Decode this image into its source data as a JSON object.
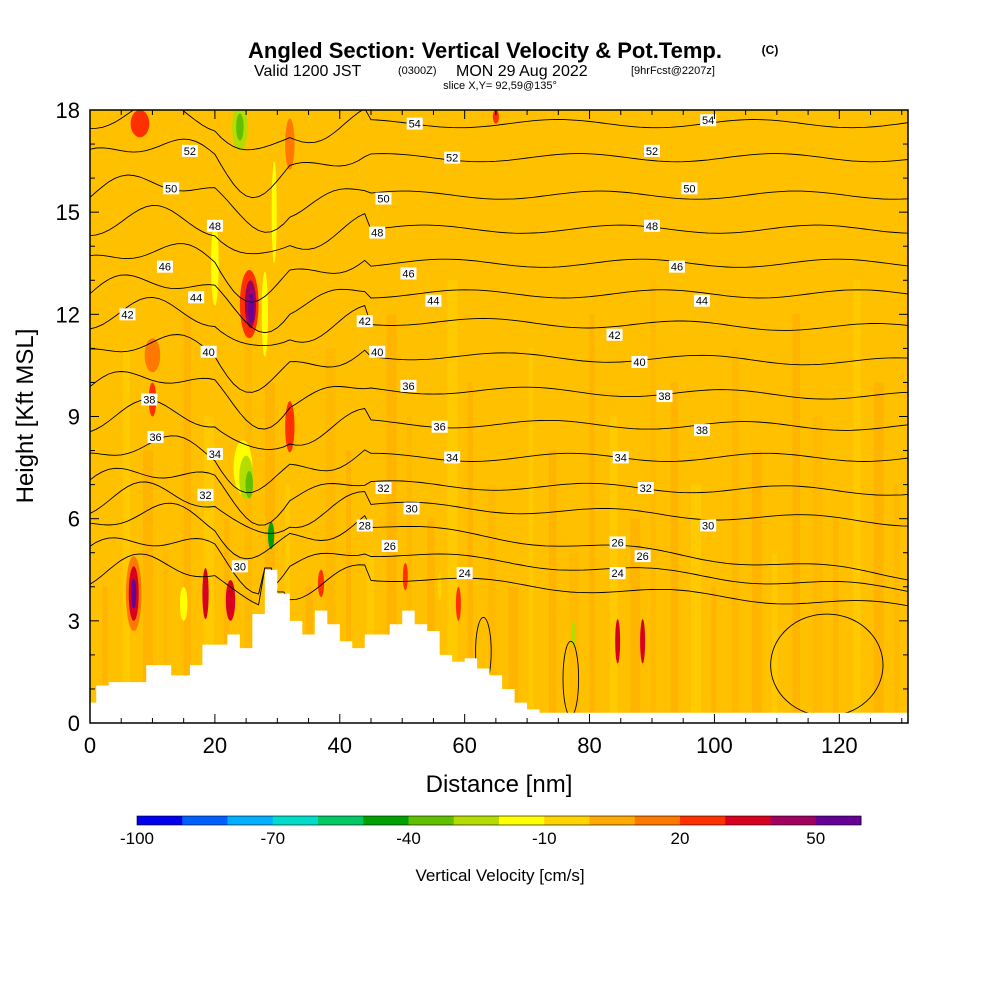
{
  "chart_data": {
    "type": "heatmap",
    "title": "Angled Section: Vertical Velocity & Pot.Temp.",
    "title_mark": "(C)",
    "subtitle_parts": [
      "Valid 1200 JST",
      "(0300Z)",
      "MON 29 Aug 2022",
      "[9hrFcst@2207z]"
    ],
    "subtitle2": "slice X,Y= 92,59@135°",
    "xlabel": "Distance [nm]",
    "ylabel": "Height [Kft MSL]",
    "xlim": [
      0,
      131
    ],
    "ylim": [
      0,
      18
    ],
    "xticks": [
      0,
      20,
      40,
      60,
      80,
      100,
      120
    ],
    "yticks": [
      0,
      3,
      6,
      9,
      12,
      15,
      18
    ],
    "background_color": "#ffc000",
    "colorbar": {
      "label": "Vertical Velocity [cm/s]",
      "tick_labels": [
        "-100",
        "-70",
        "-40",
        "-10",
        "20",
        "50"
      ],
      "colors": [
        "#0000ee",
        "#0060ff",
        "#00b0ff",
        "#00dcc8",
        "#00c864",
        "#00a000",
        "#60c000",
        "#b4dc00",
        "#ffff00",
        "#ffd200",
        "#ffaa00",
        "#ff7800",
        "#ff3000",
        "#d80020",
        "#a00060",
        "#640096"
      ]
    },
    "streaks": [
      {
        "x": 7,
        "y": 3.8,
        "w": 2.5,
        "h": 2.2,
        "color": "#ff7800"
      },
      {
        "x": 7,
        "y": 3.8,
        "w": 1.6,
        "h": 1.6,
        "color": "#d80020"
      },
      {
        "x": 7,
        "y": 3.8,
        "w": 0.8,
        "h": 0.9,
        "color": "#640096"
      },
      {
        "x": 10,
        "y": 9.5,
        "w": 1.2,
        "h": 1.0,
        "color": "#ff3000"
      },
      {
        "x": 10,
        "y": 10.8,
        "w": 2.5,
        "h": 1.0,
        "color": "#ff7800"
      },
      {
        "x": 8,
        "y": 17.6,
        "w": 3,
        "h": 0.8,
        "color": "#ff3000"
      },
      {
        "x": 18.5,
        "y": 3.8,
        "w": 1.0,
        "h": 1.5,
        "color": "#d80020"
      },
      {
        "x": 22.5,
        "y": 3.6,
        "w": 1.5,
        "h": 1.2,
        "color": "#d80020"
      },
      {
        "x": 25.5,
        "y": 12.3,
        "w": 3,
        "h": 2.0,
        "color": "#ff3000"
      },
      {
        "x": 25.7,
        "y": 12.3,
        "w": 1.8,
        "h": 1.4,
        "color": "#a00060"
      },
      {
        "x": 25.8,
        "y": 12.2,
        "w": 0.9,
        "h": 0.9,
        "color": "#640096"
      },
      {
        "x": 32,
        "y": 8.7,
        "w": 1.5,
        "h": 1.5,
        "color": "#ff3000"
      },
      {
        "x": 32,
        "y": 17.0,
        "w": 1.5,
        "h": 1.5,
        "color": "#ff7800"
      },
      {
        "x": 37,
        "y": 4.1,
        "w": 1.0,
        "h": 0.8,
        "color": "#ff3000"
      },
      {
        "x": 50.5,
        "y": 4.3,
        "w": 0.8,
        "h": 0.8,
        "color": "#ff3000"
      },
      {
        "x": 59,
        "y": 3.5,
        "w": 0.8,
        "h": 1.0,
        "color": "#ff3000"
      },
      {
        "x": 65,
        "y": 17.8,
        "w": 1.0,
        "h": 0.4,
        "color": "#ff3000"
      },
      {
        "x": 84.5,
        "y": 2.4,
        "w": 0.8,
        "h": 1.3,
        "color": "#d80020"
      },
      {
        "x": 88.5,
        "y": 2.4,
        "w": 0.8,
        "h": 1.3,
        "color": "#d80020"
      }
    ],
    "negative_blobs": [
      {
        "x": 24,
        "y": 17.5,
        "w": 2.5,
        "h": 1.4,
        "color": "#b4dc00"
      },
      {
        "x": 24,
        "y": 17.5,
        "w": 1.2,
        "h": 0.8,
        "color": "#60c000"
      },
      {
        "x": 20,
        "y": 13.5,
        "w": 1.2,
        "h": 2.5,
        "color": "#ffff00"
      },
      {
        "x": 15,
        "y": 3.5,
        "w": 1.2,
        "h": 1.0,
        "color": "#ffff00"
      },
      {
        "x": 24.5,
        "y": 7.5,
        "w": 3.0,
        "h": 1.6,
        "color": "#ffff00"
      },
      {
        "x": 25,
        "y": 7.2,
        "w": 2.2,
        "h": 1.3,
        "color": "#b4dc00"
      },
      {
        "x": 25.5,
        "y": 7.0,
        "w": 1.2,
        "h": 0.8,
        "color": "#60c000"
      },
      {
        "x": 28,
        "y": 12.0,
        "w": 1.0,
        "h": 2.5,
        "color": "#ffff00"
      },
      {
        "x": 29,
        "y": 5.5,
        "w": 1.0,
        "h": 0.8,
        "color": "#00a000"
      },
      {
        "x": 29.5,
        "y": 15.0,
        "w": 0.8,
        "h": 3.0,
        "color": "#ffff00"
      },
      {
        "x": 77.5,
        "y": 2.6,
        "w": 0.7,
        "h": 0.8,
        "color": "#b4dc00"
      },
      {
        "x": 56,
        "y": 4.0,
        "w": 0.6,
        "h": 0.8,
        "color": "#ffd200"
      }
    ],
    "terrain_nm": [
      0,
      1,
      3,
      5,
      9,
      13,
      16,
      18,
      22,
      24,
      26,
      28,
      30,
      32,
      34,
      36,
      38,
      40,
      42,
      44,
      46,
      48,
      50,
      52,
      54,
      56,
      58,
      60,
      62,
      64,
      66,
      68,
      70,
      72,
      131
    ],
    "terrain_kft": [
      0.6,
      1.1,
      1.2,
      1.2,
      1.7,
      1.4,
      1.7,
      2.3,
      2.6,
      2.2,
      3.2,
      4.5,
      3.8,
      3.0,
      2.6,
      3.3,
      2.9,
      2.4,
      2.2,
      2.6,
      2.6,
      2.9,
      3.3,
      2.9,
      2.7,
      2.0,
      1.8,
      1.9,
      1.6,
      1.4,
      1.0,
      0.6,
      0.4,
      0.3,
      0.3
    ],
    "isentropes": [
      {
        "theta": 24,
        "y_mid": 4.3,
        "y_right": 3.4
      },
      {
        "theta": 26,
        "y_mid": 5.0,
        "y_right": 3.9
      },
      {
        "theta": 28,
        "y_mid": 5.8,
        "y_right": 4.3
      },
      {
        "theta": 30,
        "y_mid": 6.4,
        "y_right": 5.9
      },
      {
        "theta": 32,
        "y_mid": 7.0,
        "y_right": 6.8
      },
      {
        "theta": 34,
        "y_mid": 7.8,
        "y_right": 7.8
      },
      {
        "theta": 36,
        "y_mid": 8.8,
        "y_right": 8.7
      },
      {
        "theta": 38,
        "y_mid": 9.8,
        "y_right": 9.6
      },
      {
        "theta": 40,
        "y_mid": 10.8,
        "y_right": 10.6
      },
      {
        "theta": 42,
        "y_mid": 11.8,
        "y_right": 11.6
      },
      {
        "theta": 44,
        "y_mid": 12.6,
        "y_right": 12.6
      },
      {
        "theta": 46,
        "y_mid": 13.5,
        "y_right": 13.5
      },
      {
        "theta": 48,
        "y_mid": 14.5,
        "y_right": 14.5
      },
      {
        "theta": 50,
        "y_mid": 15.5,
        "y_right": 15.5
      },
      {
        "theta": 52,
        "y_mid": 16.6,
        "y_right": 16.6
      },
      {
        "theta": 54,
        "y_mid": 17.6,
        "y_right": 17.6
      }
    ],
    "isentrope_labels": [
      {
        "text": "54",
        "x": 52,
        "y": 17.6
      },
      {
        "text": "54",
        "x": 99,
        "y": 17.7
      },
      {
        "text": "52",
        "x": 16,
        "y": 16.8
      },
      {
        "text": "52",
        "x": 58,
        "y": 16.6
      },
      {
        "text": "52",
        "x": 90,
        "y": 16.8
      },
      {
        "text": "50",
        "x": 13,
        "y": 15.7
      },
      {
        "text": "50",
        "x": 47,
        "y": 15.4
      },
      {
        "text": "50",
        "x": 96,
        "y": 15.7
      },
      {
        "text": "48",
        "x": 20,
        "y": 14.6
      },
      {
        "text": "48",
        "x": 46,
        "y": 14.4
      },
      {
        "text": "48",
        "x": 90,
        "y": 14.6
      },
      {
        "text": "46",
        "x": 12,
        "y": 13.4
      },
      {
        "text": "46",
        "x": 51,
        "y": 13.2
      },
      {
        "text": "46",
        "x": 94,
        "y": 13.4
      },
      {
        "text": "44",
        "x": 17,
        "y": 12.5
      },
      {
        "text": "44",
        "x": 55,
        "y": 12.4
      },
      {
        "text": "44",
        "x": 98,
        "y": 12.4
      },
      {
        "text": "42",
        "x": 6,
        "y": 12.0
      },
      {
        "text": "42",
        "x": 44,
        "y": 11.8
      },
      {
        "text": "42",
        "x": 84,
        "y": 11.4
      },
      {
        "text": "40",
        "x": 19,
        "y": 10.9
      },
      {
        "text": "40",
        "x": 46,
        "y": 10.9
      },
      {
        "text": "40",
        "x": 88,
        "y": 10.6
      },
      {
        "text": "38",
        "x": 9.5,
        "y": 9.5
      },
      {
        "text": "36",
        "x": 51,
        "y": 9.9
      },
      {
        "text": "38",
        "x": 92,
        "y": 9.6
      },
      {
        "text": "36",
        "x": 56,
        "y": 8.7
      },
      {
        "text": "38",
        "x": 98,
        "y": 8.6
      },
      {
        "text": "36",
        "x": 10.5,
        "y": 8.4
      },
      {
        "text": "34",
        "x": 20,
        "y": 7.9
      },
      {
        "text": "34",
        "x": 58,
        "y": 7.8
      },
      {
        "text": "34",
        "x": 85,
        "y": 7.8
      },
      {
        "text": "32",
        "x": 18.5,
        "y": 6.7
      },
      {
        "text": "32",
        "x": 47,
        "y": 6.9
      },
      {
        "text": "32",
        "x": 89,
        "y": 6.9
      },
      {
        "text": "30",
        "x": 51.5,
        "y": 6.3
      },
      {
        "text": "30",
        "x": 99,
        "y": 5.8
      },
      {
        "text": "28",
        "x": 44,
        "y": 5.8
      },
      {
        "text": "26",
        "x": 48,
        "y": 5.2
      },
      {
        "text": "26",
        "x": 84.5,
        "y": 5.3
      },
      {
        "text": "26",
        "x": 88.5,
        "y": 4.9
      },
      {
        "text": "30",
        "x": 24,
        "y": 4.6
      },
      {
        "text": "24",
        "x": 60,
        "y": 4.4
      },
      {
        "text": "24",
        "x": 84.5,
        "y": 4.4
      }
    ],
    "zero_contours": [
      {
        "type": "ellipse",
        "x": 63,
        "y": 2.1,
        "w": 2.5,
        "h": 2.0
      },
      {
        "type": "ellipse",
        "x": 77,
        "y": 1.3,
        "w": 2.5,
        "h": 2.2
      },
      {
        "type": "ellipse",
        "x": 118,
        "y": 1.7,
        "w": 18,
        "h": 3.0
      }
    ]
  }
}
